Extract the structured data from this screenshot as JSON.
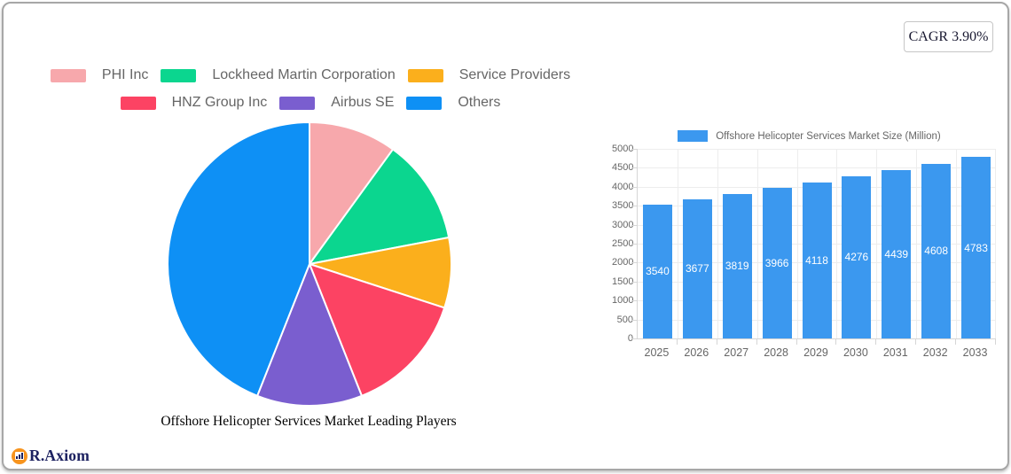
{
  "card": {
    "cagr_label": "CAGR 3.90%"
  },
  "brand": {
    "name": "R.Axiom"
  },
  "chart_data": [
    {
      "type": "pie",
      "title": "Offshore Helicopter Services Market Leading Players",
      "labels": [
        "PHI Inc",
        "Lockheed Martin Corporation",
        "Service Providers",
        "HNZ Group Inc",
        "Airbus SE",
        "Others"
      ],
      "values": [
        10,
        12,
        8,
        14,
        12,
        44
      ],
      "values_note": "share estimated from arc angles, percent",
      "colors": [
        "#F7A8AC",
        "#0BD68F",
        "#FBAF1C",
        "#FC4363",
        "#7A5ECF",
        "#0E90F5"
      ],
      "start_angle_deg": 0,
      "direction": "clockwise",
      "legend_position": "top",
      "legend_rows": [
        3,
        3
      ]
    },
    {
      "type": "bar",
      "legend": "Offshore Helicopter Services Market Size (Million)",
      "categories": [
        "2025",
        "2026",
        "2027",
        "2028",
        "2029",
        "2030",
        "2031",
        "2032",
        "2033"
      ],
      "values": [
        3540,
        3677,
        3819,
        3966,
        4118,
        4276,
        4439,
        4608,
        4783
      ],
      "bar_color": "#3B98EF",
      "value_label_color": "#FFFFFF",
      "ylim": [
        0,
        5000
      ],
      "ytick_step": 500,
      "grid": true,
      "legend_position": "top"
    }
  ]
}
